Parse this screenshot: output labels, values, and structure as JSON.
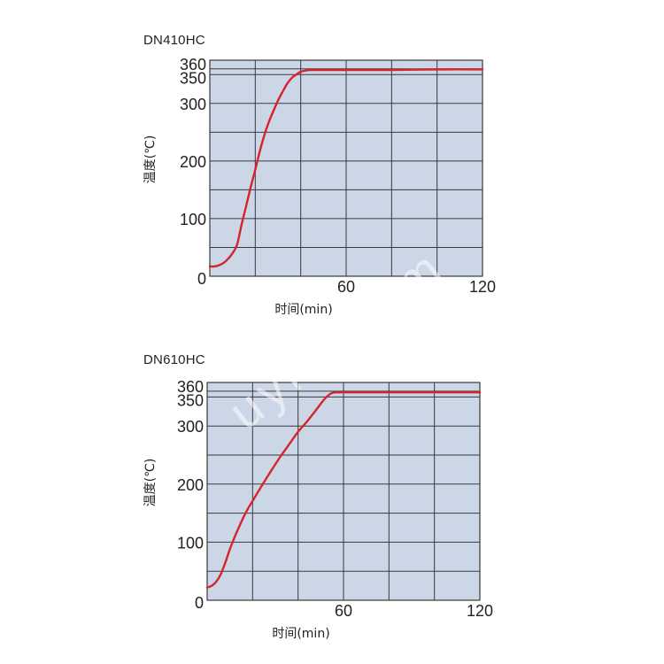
{
  "colors": {
    "plot_bg": "#cbd6e6",
    "grid": "#3a3a3a",
    "curve": "#d6242a",
    "text": "#222222"
  },
  "watermark_text": "uyiqi.com",
  "chart_data": [
    {
      "type": "line",
      "title": "DN410HC",
      "xlabel": "时间(min)",
      "ylabel": "温度(℃)",
      "xlim": [
        0,
        120
      ],
      "ylim": [
        0,
        375
      ],
      "xticks": [
        0,
        60,
        120
      ],
      "yticks": [
        0,
        100,
        200,
        300,
        350,
        360
      ],
      "grid": true,
      "series": [
        {
          "x": [
            0,
            2,
            4,
            6,
            8,
            10,
            12,
            14,
            16,
            18,
            20,
            22,
            24,
            26,
            28,
            30,
            32,
            34,
            36,
            38,
            40,
            42,
            44,
            46,
            48,
            60,
            80,
            100,
            120
          ],
          "values": [
            17,
            17,
            19,
            23,
            30,
            40,
            55,
            90,
            122,
            155,
            185,
            217,
            245,
            268,
            287,
            305,
            320,
            334,
            344,
            350,
            355,
            357,
            358,
            358,
            358,
            358,
            358,
            359,
            359
          ]
        }
      ]
    },
    {
      "type": "line",
      "title": "DN610HC",
      "xlabel": "时间(min)",
      "ylabel": "温度(℃)",
      "xlim": [
        0,
        120
      ],
      "ylim": [
        0,
        375
      ],
      "xticks": [
        0,
        60,
        120
      ],
      "yticks": [
        0,
        100,
        200,
        300,
        350,
        360
      ],
      "grid": true,
      "series": [
        {
          "x": [
            0,
            2,
            4,
            6,
            8,
            10,
            12,
            14,
            16,
            18,
            20,
            24,
            28,
            32,
            36,
            40,
            44,
            48,
            52,
            55,
            58,
            60,
            80,
            100,
            120
          ],
          "values": [
            22,
            25,
            32,
            45,
            65,
            88,
            108,
            126,
            143,
            158,
            171,
            197,
            222,
            246,
            268,
            290,
            308,
            328,
            348,
            357,
            358,
            358,
            358,
            358,
            358
          ]
        }
      ]
    }
  ]
}
